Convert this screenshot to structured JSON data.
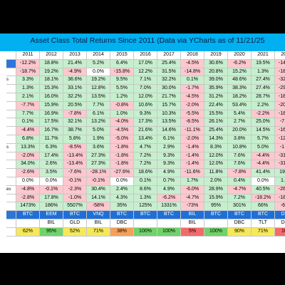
{
  "title": "Asset Class Total Returns Since 2011 (Data via YCharts as of 11/21/25",
  "years": [
    "2011",
    "2012",
    "2013",
    "2014",
    "2015",
    "2016",
    "2017",
    "2018",
    "2019",
    "2020",
    "2021",
    "2022",
    "2023"
  ],
  "row_labels": [
    "",
    "",
    "s",
    "",
    "",
    "",
    "",
    "",
    "",
    "",
    "s",
    "",
    "",
    "",
    "",
    "es",
    "",
    "",
    "",
    ""
  ],
  "rows": [
    [
      "-12.2%",
      "18.8%",
      "21.4%",
      "5.2%",
      "6.4%",
      "17.0%",
      "25.4%",
      "-4.5%",
      "30.6%",
      "-6.2%",
      "19.5%",
      "-14.4%",
      "18.4%"
    ],
    [
      "-18.7%",
      "19.2%",
      "-4.9%",
      "0.0%",
      "-15.8%",
      "12.2%",
      "31.5%",
      "-14.8%",
      "20.8%",
      "15.2%",
      "1.3%",
      "-18.0%",
      "9.3%"
    ],
    [
      "3.3%",
      "18.1%",
      "36.6%",
      "19.2%",
      "9.5%",
      "7.1%",
      "32.2%",
      "0.1%",
      "39.0%",
      "48.6%",
      "27.4%",
      "-32.6%",
      "54.9%"
    ],
    [
      "1.3%",
      "15.3%",
      "33.1%",
      "12.8%",
      "5.5%",
      "7.0%",
      "30.0%",
      "-1.7%",
      "35.9%",
      "38.3%",
      "27.4%",
      "-29.3%",
      "42.6%"
    ],
    [
      "2.1%",
      "16.0%",
      "32.2%",
      "13.5%",
      "1.2%",
      "12.0%",
      "21.7%",
      "-4.5%",
      "31.2%",
      "18.2%",
      "28.7%",
      "-18.1%",
      "26.2%"
    ],
    [
      "-7.7%",
      "15.9%",
      "20.5%",
      "7.7%",
      "-0.8%",
      "10.6%",
      "15.7%",
      "-2.0%",
      "22.4%",
      "53.4%",
      "2.2%",
      "-20.8%",
      "14.5%"
    ],
    [
      "7.7%",
      "16.9%",
      "-7.8%",
      "6.1%",
      "1.0%",
      "9.3%",
      "10.3%",
      "-5.5%",
      "15.5%",
      "5.4%",
      "-2.2%",
      "-18.6%",
      "10.6%"
    ],
    [
      "0.1%",
      "17.5%",
      "32.1%",
      "13.2%",
      "-4.0%",
      "17.3%",
      "13.5%",
      "-8.5%",
      "26.1%",
      "2.7%",
      "25.0%",
      "-7.7%",
      "11.4%"
    ],
    [
      "-4.4%",
      "16.7%",
      "38.7%",
      "5.0%",
      "-4.5%",
      "21.6%",
      "14.6%",
      "-11.1%",
      "25.4%",
      "20.0%",
      "14.5%",
      "-16.1%",
      "9.9%"
    ],
    [
      "6.8%",
      "11.7%",
      "5.8%",
      "1.9%",
      "-5.0%",
      "13.4%",
      "6.1%",
      "-2.0%",
      "14.3%",
      "3.8%",
      "5.7%",
      "-12.3%",
      "3.8%"
    ],
    [
      "13.3%",
      "6.3%",
      "-8.5%",
      "3.6%",
      "-1.8%",
      "4.7%",
      "2.9%",
      "-1.4%",
      "8.3%",
      "10.8%",
      "5.0%",
      "-1.3%",
      "4.3%"
    ],
    [
      "-2.0%",
      "17.4%",
      "-13.4%",
      "27.3%",
      "-1.8%",
      "7.2%",
      "9.3%",
      "-1.4%",
      "12.0%",
      "7.6%",
      "-4.4%",
      "-31.2%",
      "2.8%"
    ],
    [
      "34.0%",
      "2.6%",
      "-13.4%",
      "27.3%",
      "-1.8%",
      "7.2%",
      "9.3%",
      "-1.4%",
      "12.0%",
      "7.6%",
      "-4.4%",
      "-31.2%",
      "2.8%"
    ],
    [
      "-2.6%",
      "3.5%",
      "-7.6%",
      "-28.1%",
      "-27.6%",
      "18.6%",
      "4.9%",
      "-11.6%",
      "11.8%",
      "-7.8%",
      "41.4%",
      "19.3%",
      "-6.2%"
    ],
    [
      "0.0%",
      "0.0%",
      "-0.1%",
      "-0.1%",
      "0.0%",
      "0.1%",
      "0.7%",
      "1.7%",
      "2.0%",
      "0.4%",
      "0.0%",
      "1.4%",
      "4.9%"
    ],
    [
      "-4.8%",
      "-0.1%",
      "-2.3%",
      "30.4%",
      "2.4%",
      "8.6%",
      "4.9%",
      "-6.0%",
      "28.9%",
      "-4.7%",
      "40.5%",
      "-26.2%",
      "11.8%"
    ],
    [
      "-2.8%",
      "17.8%",
      "-1.0%",
      "14.1%",
      "4.3%",
      "1.3%",
      "-6.2%",
      "-4.7%",
      "15.9%",
      "7.2%",
      "-18.2%",
      "-18.2%",
      "9.2%"
    ],
    [
      "1473%",
      "186%",
      "5507%",
      "-58%",
      "35%",
      "125%",
      "1331%",
      "-73%",
      "95%",
      "301%",
      "66%",
      "-65%",
      "156%"
    ]
  ],
  "best_row": [
    "BTC",
    "EEM",
    "BTC",
    "VNQ",
    "BTC",
    "BTC",
    "BTC",
    "BIL",
    "BTC",
    "BTC",
    "BTC",
    "DBC",
    "BTC"
  ],
  "best_row2": [
    "",
    "BIL",
    "GLD",
    "BIL",
    "DBC",
    "",
    "",
    "BIL",
    "",
    "DBC",
    "TLT",
    "DBC",
    "DBC"
  ],
  "pct_row": [
    "62%",
    "95%",
    "52%",
    "71%",
    "38%",
    "100%",
    "100%",
    "5%",
    "100%",
    "90%",
    "71%",
    "10%",
    "95%"
  ],
  "colors": {
    "title_bg": "#00b0f0",
    "positive": "#c6efce",
    "negative": "#ffc7ce",
    "best": "#1f6fd6"
  }
}
